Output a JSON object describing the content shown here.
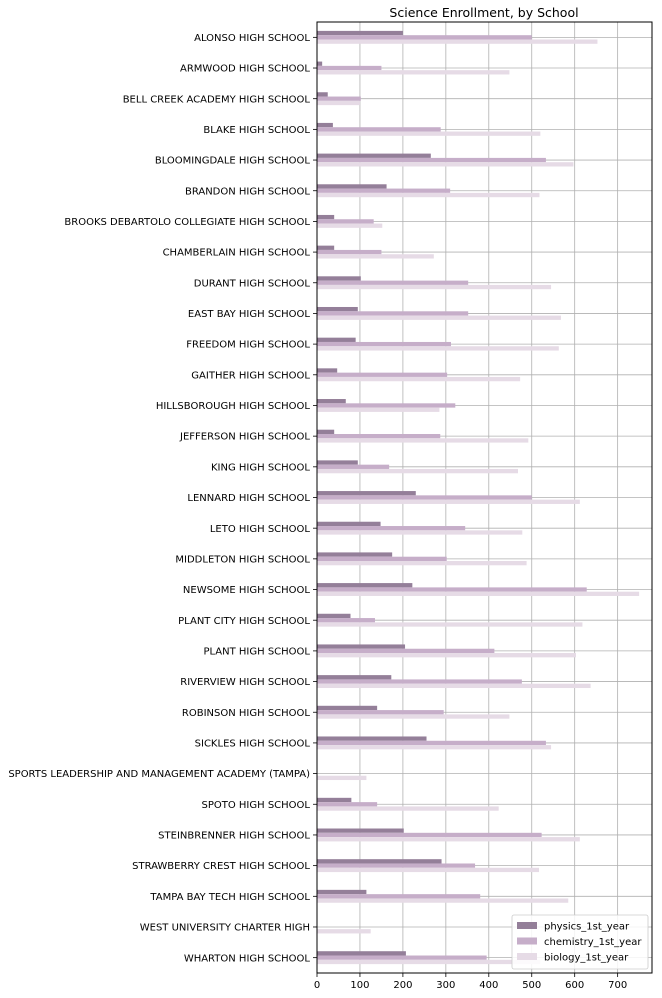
{
  "chart_data": {
    "type": "bar",
    "orientation": "horizontal",
    "title": "Science Enrollment, by School",
    "xlabel": "",
    "ylabel": "",
    "xlim": [
      0,
      780
    ],
    "xticks": [
      0,
      100,
      200,
      300,
      400,
      500,
      600,
      700
    ],
    "grid": true,
    "legend_position": "bottom-right",
    "categories": [
      "ALONSO HIGH SCHOOL",
      "ARMWOOD HIGH SCHOOL",
      "BELL CREEK ACADEMY HIGH SCHOOL",
      "BLAKE HIGH SCHOOL",
      "BLOOMINGDALE HIGH SCHOOL",
      "BRANDON HIGH SCHOOL",
      "BROOKS DEBARTOLO COLLEGIATE HIGH SCHOOL",
      "CHAMBERLAIN HIGH SCHOOL",
      "DURANT HIGH SCHOOL",
      "EAST BAY HIGH SCHOOL",
      "FREEDOM HIGH SCHOOL",
      "GAITHER HIGH SCHOOL",
      "HILLSBOROUGH HIGH SCHOOL",
      "JEFFERSON HIGH SCHOOL",
      "KING HIGH SCHOOL",
      "LENNARD HIGH SCHOOL",
      "LETO HIGH SCHOOL",
      "MIDDLETON HIGH SCHOOL",
      "NEWSOME HIGH SCHOOL",
      "PLANT CITY HIGH SCHOOL",
      "PLANT HIGH SCHOOL",
      "RIVERVIEW HIGH SCHOOL",
      "ROBINSON HIGH SCHOOL",
      "SICKLES HIGH SCHOOL",
      "SPORTS LEADERSHIP AND MANAGEMENT ACADEMY (TAMPA)",
      "SPOTO HIGH SCHOOL",
      "STEINBRENNER HIGH SCHOOL",
      "STRAWBERRY CREST HIGH SCHOOL",
      "TAMPA BAY TECH HIGH SCHOOL",
      "WEST UNIVERSITY CHARTER HIGH",
      "WHARTON HIGH SCHOOL"
    ],
    "series": [
      {
        "name": "physics_1st_year",
        "color": "#947f99",
        "values": [
          200,
          12,
          25,
          37,
          265,
          162,
          40,
          40,
          102,
          95,
          90,
          47,
          67,
          40,
          95,
          230,
          148,
          175,
          222,
          78,
          205,
          173,
          140,
          255,
          0,
          80,
          202,
          290,
          115,
          0,
          207
        ]
      },
      {
        "name": "chemistry_1st_year",
        "color": "#c6aec9",
        "values": [
          500,
          150,
          102,
          288,
          533,
          310,
          132,
          150,
          352,
          352,
          312,
          303,
          322,
          287,
          168,
          500,
          345,
          302,
          628,
          135,
          413,
          477,
          295,
          533,
          0,
          140,
          523,
          368,
          380,
          0,
          395
        ]
      },
      {
        "name": "biology_1st_year",
        "color": "#e6dbe6",
        "values": [
          653,
          448,
          100,
          520,
          597,
          518,
          152,
          272,
          545,
          568,
          563,
          473,
          285,
          492,
          468,
          612,
          478,
          488,
          750,
          618,
          603,
          637,
          448,
          545,
          115,
          423,
          612,
          517,
          585,
          125,
          520
        ]
      }
    ]
  }
}
